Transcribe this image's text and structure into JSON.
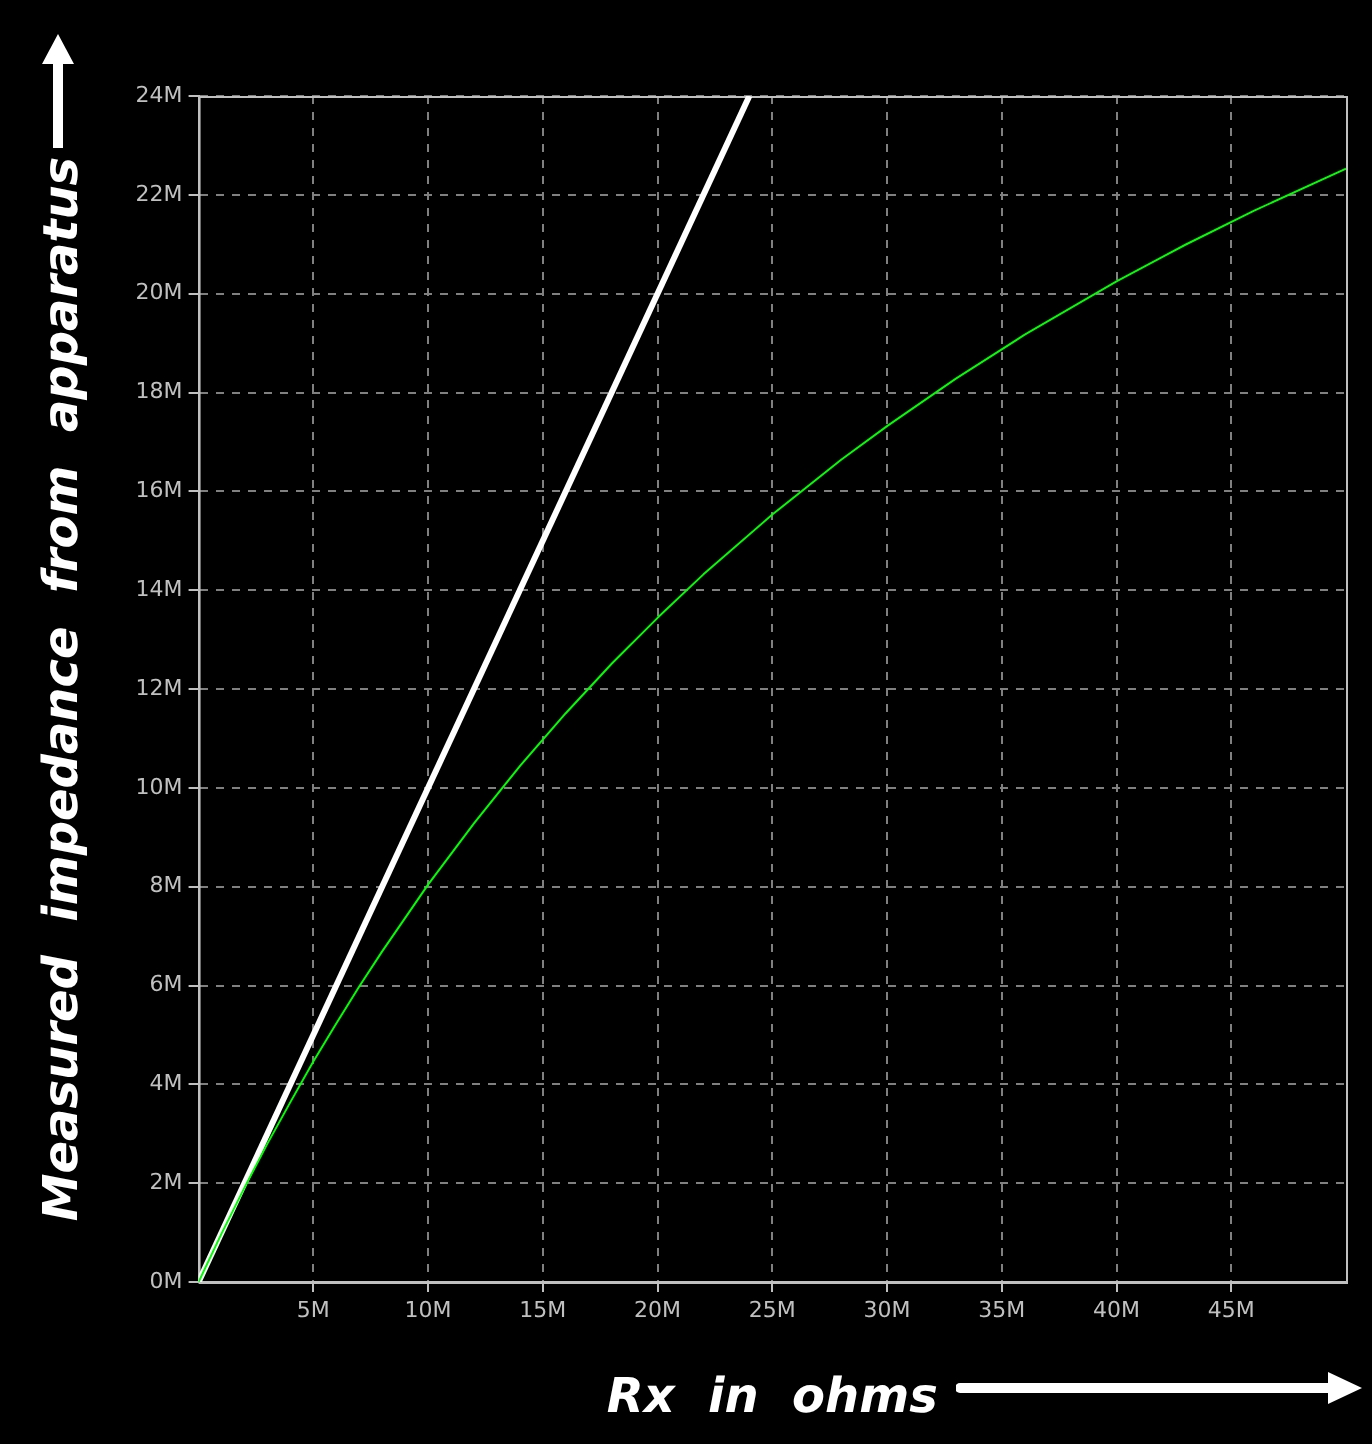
{
  "chart_data": {
    "type": "line",
    "xlabel": "Rx  in  ohms",
    "ylabel": "Measured  impedance  from  apparatus",
    "xlim": [
      0,
      50000000
    ],
    "ylim": [
      0,
      24000000
    ],
    "xticks": [
      {
        "value": 5000000,
        "label": "5M"
      },
      {
        "value": 10000000,
        "label": "10M"
      },
      {
        "value": 15000000,
        "label": "15M"
      },
      {
        "value": 20000000,
        "label": "20M"
      },
      {
        "value": 25000000,
        "label": "25M"
      },
      {
        "value": 30000000,
        "label": "30M"
      },
      {
        "value": 35000000,
        "label": "35M"
      },
      {
        "value": 40000000,
        "label": "40M"
      },
      {
        "value": 45000000,
        "label": "45M"
      }
    ],
    "yticks": [
      {
        "value": 0,
        "label": "0M"
      },
      {
        "value": 2000000,
        "label": "2M"
      },
      {
        "value": 4000000,
        "label": "4M"
      },
      {
        "value": 6000000,
        "label": "6M"
      },
      {
        "value": 8000000,
        "label": "8M"
      },
      {
        "value": 10000000,
        "label": "10M"
      },
      {
        "value": 12000000,
        "label": "12M"
      },
      {
        "value": 14000000,
        "label": "14M"
      },
      {
        "value": 16000000,
        "label": "16M"
      },
      {
        "value": 18000000,
        "label": "18M"
      },
      {
        "value": 20000000,
        "label": "20M"
      },
      {
        "value": 22000000,
        "label": "22M"
      },
      {
        "value": 24000000,
        "label": "24M"
      }
    ],
    "grid": true,
    "legend": false,
    "marker": "none",
    "line_style": "solid",
    "series": [
      {
        "color": "#ffffff",
        "x": [
          0,
          24000000
        ],
        "values": [
          0,
          24000000
        ]
      },
      {
        "color": "#00ff00",
        "x": [
          0,
          1000000,
          2000000,
          3000000,
          4000000,
          5000000,
          6000000,
          7000000,
          8000000,
          10000000,
          12000000,
          14000000,
          16000000,
          18000000,
          20000000,
          22000000,
          25000000,
          28000000,
          30000000,
          33000000,
          36000000,
          40000000,
          43000000,
          46000000,
          50000000
        ],
        "values": [
          0,
          980000,
          1910000,
          2800000,
          3640000,
          4460000,
          5230000,
          5980000,
          6690000,
          8040000,
          9280000,
          10440000,
          11510000,
          12510000,
          13440000,
          14320000,
          15530000,
          16640000,
          17320000,
          18280000,
          19170000,
          20250000,
          20990000,
          21680000,
          22530000
        ]
      }
    ]
  }
}
